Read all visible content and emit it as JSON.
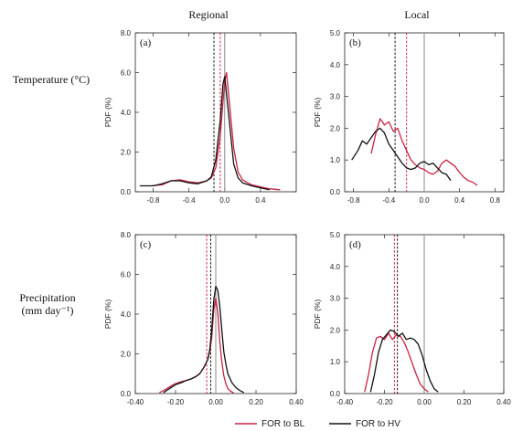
{
  "figure": {
    "col_titles": [
      "Regional",
      "Local"
    ],
    "row_titles": [
      {
        "line1": "Temperature (°C)",
        "line2": ""
      },
      {
        "line1": "Precipitation",
        "line2": "(mm day⁻¹)"
      }
    ],
    "legend": [
      {
        "label": "FOR to BL",
        "color": "#cc2244"
      },
      {
        "label": "FOR to HV",
        "color": "#111111"
      }
    ]
  },
  "chart_data": [
    {
      "panel": "(a)",
      "type": "line",
      "ylabel": "PDF (%)",
      "xlim": [
        -1.0,
        0.8
      ],
      "ylim": [
        0,
        8
      ],
      "xticks": [
        -0.8,
        -0.4,
        0.0,
        0.4
      ],
      "xtick_labels": [
        "-0.8",
        "-0.4",
        "0.0",
        "0.4"
      ],
      "yticks": [
        0,
        2,
        4,
        6,
        8
      ],
      "ytick_labels": [
        "0.0",
        "2.0",
        "4.0",
        "6.0",
        "8.0"
      ],
      "vlines": [
        {
          "x": 0.0,
          "color": "#888888",
          "style": "solid"
        },
        {
          "x": -0.12,
          "color": "#111111",
          "style": "dashed"
        },
        {
          "x": -0.05,
          "color": "#cc2244",
          "style": "dashed"
        }
      ],
      "series": [
        {
          "name": "FOR to BL",
          "color": "#cc2244",
          "x": [
            -0.82,
            -0.7,
            -0.6,
            -0.5,
            -0.4,
            -0.3,
            -0.2,
            -0.15,
            -0.1,
            -0.05,
            0.0,
            0.02,
            0.05,
            0.1,
            0.15,
            0.2,
            0.3,
            0.4,
            0.5,
            0.62
          ],
          "y": [
            0.3,
            0.35,
            0.55,
            0.6,
            0.5,
            0.45,
            0.55,
            0.7,
            1.2,
            2.8,
            5.6,
            6.0,
            4.6,
            2.2,
            1.0,
            0.6,
            0.35,
            0.25,
            0.15,
            0.1
          ]
        },
        {
          "name": "FOR to HV",
          "color": "#111111",
          "x": [
            -0.95,
            -0.8,
            -0.7,
            -0.6,
            -0.5,
            -0.4,
            -0.3,
            -0.2,
            -0.15,
            -0.1,
            -0.05,
            -0.02,
            0.0,
            0.05,
            0.1,
            0.15,
            0.2,
            0.3,
            0.4,
            0.5
          ],
          "y": [
            0.3,
            0.3,
            0.4,
            0.55,
            0.55,
            0.45,
            0.4,
            0.55,
            0.75,
            1.6,
            3.6,
            5.4,
            5.8,
            3.6,
            1.4,
            0.7,
            0.45,
            0.3,
            0.2,
            0.1
          ]
        }
      ]
    },
    {
      "panel": "(b)",
      "type": "line",
      "ylabel": "PDF (%)",
      "xlim": [
        -0.9,
        0.9
      ],
      "ylim": [
        0,
        5
      ],
      "xticks": [
        -0.8,
        -0.4,
        0.0,
        0.4,
        0.8
      ],
      "xtick_labels": [
        "-0.8",
        "-0.4",
        "0.0",
        "0.4",
        "0.8"
      ],
      "yticks": [
        0,
        1,
        2,
        3,
        4,
        5
      ],
      "ytick_labels": [
        "0.0",
        "1.0",
        "2.0",
        "3.0",
        "4.0",
        "5.0"
      ],
      "vlines": [
        {
          "x": 0.0,
          "color": "#888888",
          "style": "solid"
        },
        {
          "x": -0.33,
          "color": "#111111",
          "style": "dashed"
        },
        {
          "x": -0.2,
          "color": "#cc2244",
          "style": "dashed"
        }
      ],
      "series": [
        {
          "name": "FOR to BL",
          "color": "#cc2244",
          "x": [
            -0.6,
            -0.55,
            -0.5,
            -0.45,
            -0.4,
            -0.35,
            -0.3,
            -0.25,
            -0.2,
            -0.15,
            -0.1,
            -0.05,
            0.0,
            0.05,
            0.1,
            0.15,
            0.2,
            0.25,
            0.3,
            0.35,
            0.4,
            0.45,
            0.5,
            0.55,
            0.6
          ],
          "y": [
            1.2,
            1.8,
            2.3,
            2.1,
            2.2,
            1.9,
            2.0,
            1.6,
            1.3,
            1.0,
            0.85,
            0.75,
            0.7,
            0.6,
            0.55,
            0.65,
            0.9,
            1.0,
            0.9,
            0.8,
            0.6,
            0.45,
            0.35,
            0.3,
            0.2
          ]
        },
        {
          "name": "FOR to HV",
          "color": "#111111",
          "x": [
            -0.82,
            -0.75,
            -0.7,
            -0.65,
            -0.6,
            -0.55,
            -0.5,
            -0.45,
            -0.4,
            -0.35,
            -0.3,
            -0.25,
            -0.2,
            -0.15,
            -0.1,
            -0.05,
            0.0,
            0.05,
            0.1,
            0.15,
            0.2,
            0.25,
            0.3
          ],
          "y": [
            1.0,
            1.3,
            1.6,
            1.5,
            1.7,
            1.9,
            2.0,
            1.85,
            1.5,
            1.3,
            1.1,
            0.9,
            0.75,
            0.7,
            0.75,
            0.9,
            0.95,
            0.85,
            0.9,
            0.75,
            0.6,
            0.55,
            0.35
          ]
        }
      ]
    },
    {
      "panel": "(c)",
      "type": "line",
      "ylabel": "PDF (%)",
      "xlim": [
        -0.4,
        0.4
      ],
      "ylim": [
        0,
        8
      ],
      "xticks": [
        -0.4,
        -0.2,
        0.0,
        0.2,
        0.4
      ],
      "xtick_labels": [
        "-0.40",
        "-0.20",
        "0.00",
        "0.20",
        "0.40"
      ],
      "yticks": [
        0,
        2,
        4,
        6,
        8
      ],
      "ytick_labels": [
        "0.0",
        "2.0",
        "4.0",
        "6.0",
        "8.0"
      ],
      "vlines": [
        {
          "x": 0.0,
          "color": "#888888",
          "style": "solid"
        },
        {
          "x": -0.025,
          "color": "#111111",
          "style": "dashed"
        },
        {
          "x": -0.045,
          "color": "#cc2244",
          "style": "dashed"
        }
      ],
      "series": [
        {
          "name": "FOR to BL",
          "color": "#cc2244",
          "x": [
            -0.28,
            -0.25,
            -0.22,
            -0.2,
            -0.17,
            -0.15,
            -0.12,
            -0.1,
            -0.08,
            -0.06,
            -0.04,
            -0.03,
            -0.02,
            -0.01,
            0.0,
            0.01,
            0.02,
            0.03,
            0.04,
            0.05,
            0.06,
            0.07,
            0.08,
            0.09
          ],
          "y": [
            0.05,
            0.2,
            0.4,
            0.5,
            0.6,
            0.65,
            0.75,
            0.85,
            1.0,
            1.3,
            1.7,
            2.1,
            2.8,
            4.2,
            4.8,
            4.1,
            2.6,
            1.6,
            0.9,
            0.5,
            0.25,
            0.15,
            0.08,
            0.03
          ]
        },
        {
          "name": "FOR to HV",
          "color": "#111111",
          "x": [
            -0.26,
            -0.23,
            -0.2,
            -0.17,
            -0.15,
            -0.12,
            -0.1,
            -0.08,
            -0.06,
            -0.04,
            -0.03,
            -0.02,
            -0.01,
            0.0,
            0.01,
            0.02,
            0.03,
            0.04,
            0.05,
            0.06,
            0.08,
            0.1,
            0.12,
            0.14
          ],
          "y": [
            0.05,
            0.25,
            0.45,
            0.55,
            0.65,
            0.75,
            0.85,
            1.0,
            1.3,
            1.7,
            2.2,
            3.2,
            4.7,
            5.4,
            5.2,
            4.4,
            3.2,
            2.1,
            1.5,
            1.0,
            0.55,
            0.3,
            0.15,
            0.05
          ]
        }
      ]
    },
    {
      "panel": "(d)",
      "type": "line",
      "ylabel": "PDF (%)",
      "xlim": [
        -0.4,
        0.4
      ],
      "ylim": [
        0,
        5
      ],
      "xticks": [
        -0.4,
        -0.2,
        0.0,
        0.2,
        0.4
      ],
      "xtick_labels": [
        "-0.40",
        "-0.20",
        "0.00",
        "0.20",
        "0.40"
      ],
      "yticks": [
        0,
        1,
        2,
        3,
        4,
        5
      ],
      "ytick_labels": [
        "0.0",
        "1.0",
        "2.0",
        "3.0",
        "4.0",
        "5.0"
      ],
      "vlines": [
        {
          "x": 0.0,
          "color": "#888888",
          "style": "solid"
        },
        {
          "x": -0.135,
          "color": "#111111",
          "style": "dashed"
        },
        {
          "x": -0.15,
          "color": "#cc2244",
          "style": "dashed"
        }
      ],
      "series": [
        {
          "name": "FOR to BL",
          "color": "#cc2244",
          "x": [
            -0.3,
            -0.28,
            -0.26,
            -0.24,
            -0.22,
            -0.2,
            -0.18,
            -0.16,
            -0.14,
            -0.12,
            -0.1,
            -0.08,
            -0.06,
            -0.04,
            -0.02,
            0.0,
            0.02
          ],
          "y": [
            0.05,
            0.6,
            1.3,
            1.75,
            1.8,
            1.7,
            1.9,
            1.7,
            1.85,
            1.8,
            1.6,
            1.3,
            0.95,
            0.6,
            0.3,
            0.15,
            0.05
          ]
        },
        {
          "name": "FOR to HV",
          "color": "#111111",
          "x": [
            -0.27,
            -0.25,
            -0.23,
            -0.21,
            -0.19,
            -0.17,
            -0.15,
            -0.13,
            -0.11,
            -0.09,
            -0.07,
            -0.05,
            -0.03,
            -0.01,
            0.01,
            0.03,
            0.05,
            0.07
          ],
          "y": [
            0.05,
            0.6,
            1.3,
            1.7,
            1.85,
            2.0,
            1.95,
            1.8,
            1.9,
            1.7,
            1.75,
            1.7,
            1.55,
            1.2,
            0.75,
            0.4,
            0.15,
            0.05
          ]
        }
      ]
    }
  ]
}
